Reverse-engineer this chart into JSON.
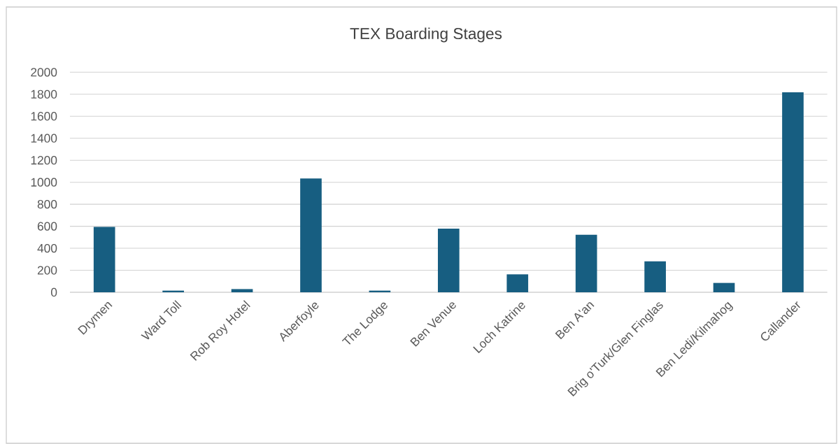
{
  "chart_data": {
    "type": "bar",
    "title": "TEX Boarding Stages",
    "categories": [
      "Drymen",
      "Ward Toll",
      "Rob Roy Hotel",
      "Aberfoyle",
      "The Lodge",
      "Ben Venue",
      "Loch Katrine",
      "Ben A'an",
      "Brig o'Turk/Glen Finglas",
      "Ben Ledi/Kilmahog",
      "Callander"
    ],
    "values": [
      595,
      15,
      29,
      1034,
      15,
      578,
      163,
      522,
      281,
      85,
      1818
    ],
    "color": "#175e81",
    "ylim": [
      0,
      2000
    ],
    "yticks": [
      0,
      200,
      400,
      600,
      800,
      1000,
      1200,
      1400,
      1600,
      1800,
      2000
    ],
    "grid": "y"
  }
}
